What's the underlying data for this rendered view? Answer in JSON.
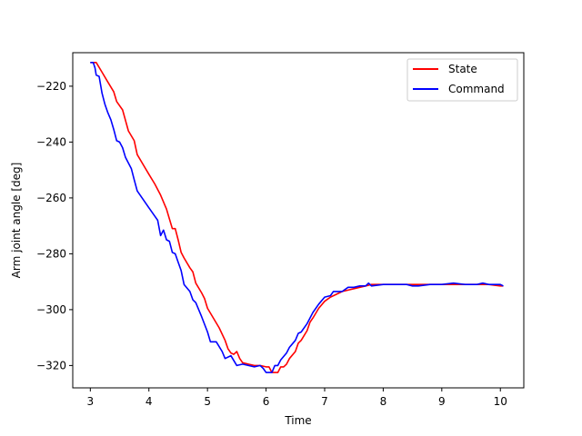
{
  "chart_data": {
    "type": "line",
    "xlabel": "Time",
    "ylabel": "Arm joint angle [deg]",
    "xlim": [
      2.7,
      10.4
    ],
    "ylim": [
      -328,
      -208
    ],
    "xticks": [
      3,
      4,
      5,
      6,
      7,
      8,
      9,
      10
    ],
    "yticks": [
      -320,
      -300,
      -280,
      -260,
      -240,
      -220
    ],
    "grid": false,
    "legend_position": "top-right",
    "series": [
      {
        "name": "State",
        "color": "#ff0000",
        "points": [
          [
            3.0,
            -211.5
          ],
          [
            3.1,
            -211.5
          ],
          [
            3.2,
            -215
          ],
          [
            3.3,
            -218.5
          ],
          [
            3.4,
            -222
          ],
          [
            3.45,
            -225.5
          ],
          [
            3.55,
            -228.5
          ],
          [
            3.65,
            -236
          ],
          [
            3.75,
            -239.5
          ],
          [
            3.8,
            -244.5
          ],
          [
            3.9,
            -248
          ],
          [
            4.0,
            -251.5
          ],
          [
            4.1,
            -255
          ],
          [
            4.2,
            -259
          ],
          [
            4.3,
            -264
          ],
          [
            4.35,
            -267.5
          ],
          [
            4.4,
            -271
          ],
          [
            4.45,
            -271
          ],
          [
            4.5,
            -275
          ],
          [
            4.55,
            -279.5
          ],
          [
            4.6,
            -281.5
          ],
          [
            4.7,
            -285
          ],
          [
            4.75,
            -286.5
          ],
          [
            4.8,
            -290.5
          ],
          [
            4.9,
            -294
          ],
          [
            4.95,
            -296
          ],
          [
            5.0,
            -299.5
          ],
          [
            5.1,
            -303
          ],
          [
            5.2,
            -306.5
          ],
          [
            5.3,
            -311
          ],
          [
            5.35,
            -314
          ],
          [
            5.4,
            -315.5
          ],
          [
            5.45,
            -316
          ],
          [
            5.5,
            -315
          ],
          [
            5.55,
            -317.5
          ],
          [
            5.6,
            -319
          ],
          [
            5.7,
            -319.5
          ],
          [
            5.8,
            -320
          ],
          [
            5.9,
            -320
          ],
          [
            6.0,
            -320.5
          ],
          [
            6.05,
            -320.5
          ],
          [
            6.1,
            -322.5
          ],
          [
            6.2,
            -322.5
          ],
          [
            6.25,
            -320.5
          ],
          [
            6.3,
            -320.5
          ],
          [
            6.35,
            -319.5
          ],
          [
            6.4,
            -317.5
          ],
          [
            6.5,
            -315
          ],
          [
            6.55,
            -312
          ],
          [
            6.6,
            -311
          ],
          [
            6.7,
            -307.5
          ],
          [
            6.75,
            -304.5
          ],
          [
            6.8,
            -303
          ],
          [
            6.9,
            -299.5
          ],
          [
            7.0,
            -297
          ],
          [
            7.1,
            -295.5
          ],
          [
            7.2,
            -294.5
          ],
          [
            7.3,
            -293.5
          ],
          [
            7.4,
            -293
          ],
          [
            7.5,
            -292.5
          ],
          [
            7.6,
            -292
          ],
          [
            7.7,
            -291.5
          ],
          [
            7.8,
            -291
          ],
          [
            7.9,
            -291
          ],
          [
            8.0,
            -291
          ],
          [
            8.2,
            -291
          ],
          [
            8.4,
            -291
          ],
          [
            8.6,
            -291
          ],
          [
            8.8,
            -291
          ],
          [
            9.0,
            -291
          ],
          [
            9.2,
            -291
          ],
          [
            9.4,
            -291
          ],
          [
            9.6,
            -291
          ],
          [
            9.8,
            -291
          ],
          [
            10.0,
            -291.5
          ],
          [
            10.05,
            -291.5
          ]
        ]
      },
      {
        "name": "Command",
        "color": "#0000ff",
        "points": [
          [
            3.0,
            -211.5
          ],
          [
            3.05,
            -211.5
          ],
          [
            3.08,
            -213.5
          ],
          [
            3.1,
            -216
          ],
          [
            3.15,
            -216.5
          ],
          [
            3.2,
            -222.5
          ],
          [
            3.25,
            -226.5
          ],
          [
            3.3,
            -229.5
          ],
          [
            3.35,
            -232
          ],
          [
            3.4,
            -235.5
          ],
          [
            3.45,
            -239.5
          ],
          [
            3.5,
            -240
          ],
          [
            3.55,
            -242
          ],
          [
            3.6,
            -245.5
          ],
          [
            3.7,
            -249.5
          ],
          [
            3.75,
            -253.5
          ],
          [
            3.8,
            -257.5
          ],
          [
            3.9,
            -260.5
          ],
          [
            4.0,
            -263.5
          ],
          [
            4.1,
            -266.5
          ],
          [
            4.15,
            -268
          ],
          [
            4.2,
            -273.5
          ],
          [
            4.25,
            -271.5
          ],
          [
            4.3,
            -275
          ],
          [
            4.35,
            -275.5
          ],
          [
            4.4,
            -279.5
          ],
          [
            4.45,
            -280
          ],
          [
            4.5,
            -283
          ],
          [
            4.55,
            -286
          ],
          [
            4.6,
            -291
          ],
          [
            4.7,
            -293.5
          ],
          [
            4.75,
            -296.5
          ],
          [
            4.8,
            -297.5
          ],
          [
            4.9,
            -302.5
          ],
          [
            5.0,
            -308
          ],
          [
            5.05,
            -311.5
          ],
          [
            5.15,
            -311.5
          ],
          [
            5.25,
            -315
          ],
          [
            5.3,
            -317.5
          ],
          [
            5.4,
            -316.5
          ],
          [
            5.5,
            -320
          ],
          [
            5.6,
            -319.5
          ],
          [
            5.7,
            -320
          ],
          [
            5.8,
            -320.5
          ],
          [
            5.9,
            -320
          ],
          [
            5.95,
            -321
          ],
          [
            6.0,
            -322.5
          ],
          [
            6.1,
            -322.5
          ],
          [
            6.15,
            -320
          ],
          [
            6.2,
            -320
          ],
          [
            6.25,
            -318
          ],
          [
            6.35,
            -315.5
          ],
          [
            6.4,
            -313.5
          ],
          [
            6.5,
            -311
          ],
          [
            6.55,
            -308.5
          ],
          [
            6.6,
            -308
          ],
          [
            6.7,
            -305
          ],
          [
            6.8,
            -301
          ],
          [
            6.9,
            -298
          ],
          [
            7.0,
            -295.5
          ],
          [
            7.1,
            -295
          ],
          [
            7.15,
            -293.5
          ],
          [
            7.3,
            -293.5
          ],
          [
            7.4,
            -292
          ],
          [
            7.5,
            -292
          ],
          [
            7.6,
            -291.5
          ],
          [
            7.7,
            -291.5
          ],
          [
            7.75,
            -290.5
          ],
          [
            7.8,
            -291.5
          ],
          [
            8.0,
            -291
          ],
          [
            8.2,
            -291
          ],
          [
            8.4,
            -291
          ],
          [
            8.5,
            -291.5
          ],
          [
            8.6,
            -291.5
          ],
          [
            8.8,
            -291
          ],
          [
            9.0,
            -291
          ],
          [
            9.2,
            -290.5
          ],
          [
            9.4,
            -291
          ],
          [
            9.6,
            -291
          ],
          [
            9.7,
            -290.5
          ],
          [
            9.8,
            -291
          ],
          [
            10.0,
            -291
          ],
          [
            10.05,
            -291.5
          ]
        ]
      }
    ]
  }
}
